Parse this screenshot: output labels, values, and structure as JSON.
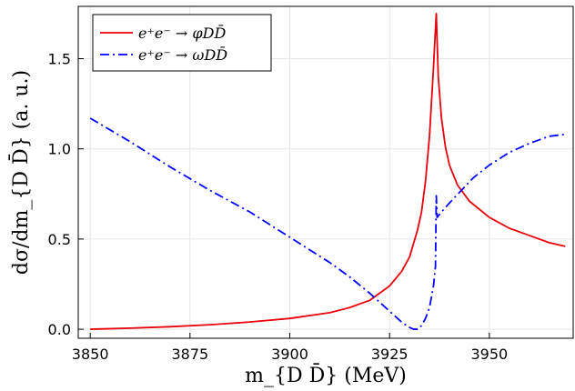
{
  "chart_data": {
    "type": "line",
    "xlabel": "m_{D D̄} (MeV)",
    "ylabel": "dσ/dm_{D D̄} (a. u.)",
    "xlim": [
      3847,
      3971
    ],
    "ylim": [
      -0.05,
      1.79
    ],
    "x_ticks": [
      3850,
      3875,
      3900,
      3925,
      3950
    ],
    "y_ticks": [
      0.0,
      0.5,
      1.0,
      1.5
    ],
    "x_tick_labels": [
      "3850",
      "3875",
      "3900",
      "3925",
      "3950"
    ],
    "y_tick_labels": [
      "0.0",
      "0.5",
      "1.0",
      "1.5"
    ],
    "grid": true,
    "legend_position": "top-left",
    "series": [
      {
        "name": "e⁺e⁻ → φDD̄",
        "color": "#e8000b",
        "style": "solid",
        "points": [
          [
            3850,
            0.0
          ],
          [
            3860,
            0.006
          ],
          [
            3870,
            0.014
          ],
          [
            3880,
            0.025
          ],
          [
            3890,
            0.04
          ],
          [
            3900,
            0.06
          ],
          [
            3910,
            0.092
          ],
          [
            3915,
            0.12
          ],
          [
            3920,
            0.16
          ],
          [
            3925,
            0.24
          ],
          [
            3928,
            0.32
          ],
          [
            3930,
            0.4
          ],
          [
            3932,
            0.55
          ],
          [
            3933,
            0.65
          ],
          [
            3934,
            0.82
          ],
          [
            3935,
            1.07
          ],
          [
            3936,
            1.45
          ],
          [
            3936.7,
            1.75
          ],
          [
            3937.2,
            1.4
          ],
          [
            3938,
            1.17
          ],
          [
            3939,
            1.01
          ],
          [
            3940,
            0.91
          ],
          [
            3942,
            0.8
          ],
          [
            3945,
            0.71
          ],
          [
            3950,
            0.62
          ],
          [
            3955,
            0.56
          ],
          [
            3960,
            0.52
          ],
          [
            3965,
            0.48
          ],
          [
            3969,
            0.46
          ]
        ]
      },
      {
        "name": "e⁺e⁻ → ωDD̄",
        "color": "#0000ff",
        "style": "dashdot",
        "points": [
          [
            3850,
            1.17
          ],
          [
            3860,
            1.04
          ],
          [
            3870,
            0.9
          ],
          [
            3880,
            0.77
          ],
          [
            3890,
            0.65
          ],
          [
            3900,
            0.51
          ],
          [
            3910,
            0.37
          ],
          [
            3915,
            0.29
          ],
          [
            3920,
            0.2
          ],
          [
            3925,
            0.1
          ],
          [
            3928,
            0.04
          ],
          [
            3930,
            0.01
          ],
          [
            3931,
            0.0
          ],
          [
            3932,
            0.0
          ],
          [
            3933,
            0.02
          ],
          [
            3934,
            0.06
          ],
          [
            3935,
            0.12
          ],
          [
            3936,
            0.24
          ],
          [
            3936.5,
            0.35
          ],
          [
            3936.7,
            0.74
          ],
          [
            3936.9,
            0.62
          ],
          [
            3938,
            0.65
          ],
          [
            3940,
            0.7
          ],
          [
            3943,
            0.77
          ],
          [
            3946,
            0.84
          ],
          [
            3950,
            0.91
          ],
          [
            3955,
            0.98
          ],
          [
            3960,
            1.03
          ],
          [
            3965,
            1.07
          ],
          [
            3969,
            1.08
          ]
        ]
      }
    ]
  }
}
